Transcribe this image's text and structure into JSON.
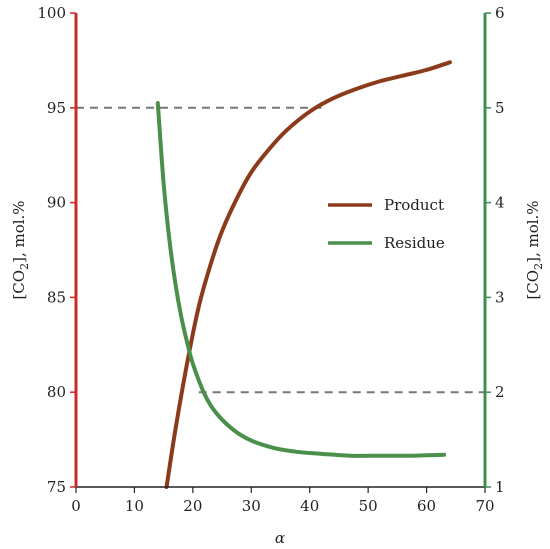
{
  "chart_data": {
    "type": "line",
    "title": "",
    "xlabel": "α",
    "ylabel_left": {
      "main": "[CO",
      "sub": "2",
      "rest": "], mol.%"
    },
    "ylabel_right": {
      "main": "[CO",
      "sub": "2",
      "rest": "], mol.%"
    },
    "xlim": [
      0,
      70
    ],
    "ylim_left": [
      75,
      100
    ],
    "ylim_right": [
      1,
      6
    ],
    "xticks": [
      "0",
      "10",
      "20",
      "30",
      "40",
      "50",
      "60",
      "70"
    ],
    "yticks_left": [
      "75",
      "80",
      "85",
      "90",
      "95",
      "100"
    ],
    "yticks_right": [
      "1",
      "2",
      "3",
      "4",
      "5",
      "6"
    ],
    "grid": false,
    "legend_position": "center-right",
    "colors": {
      "product": "#8b3a1a",
      "residue": "#4a8f4a",
      "left_axis": "#cc2a2a",
      "right_axis": "#3d8f4f",
      "reference": "#777777"
    },
    "reference_lines": [
      {
        "axis": "left",
        "y": 95,
        "x_from": 0,
        "x_to": 42
      },
      {
        "axis": "right",
        "y": 2,
        "x_from": 21,
        "x_to": 70
      }
    ],
    "series": [
      {
        "name": "Product",
        "axis": "left",
        "x": [
          15.5,
          17,
          19,
          21,
          23,
          25,
          27.5,
          30,
          33,
          36,
          40,
          44,
          48,
          52,
          56,
          60,
          64
        ],
        "y": [
          75,
          78,
          81.5,
          84.5,
          86.7,
          88.5,
          90.2,
          91.6,
          92.8,
          93.8,
          94.8,
          95.5,
          96.0,
          96.4,
          96.7,
          97.0,
          97.4
        ]
      },
      {
        "name": "Residue",
        "axis": "right",
        "x": [
          14,
          15,
          16,
          17,
          18,
          19,
          20,
          22,
          24,
          27,
          30,
          34,
          38,
          42,
          47,
          52,
          57,
          63
        ],
        "y": [
          5.05,
          4.2,
          3.6,
          3.15,
          2.8,
          2.53,
          2.3,
          1.98,
          1.78,
          1.6,
          1.49,
          1.41,
          1.37,
          1.35,
          1.33,
          1.33,
          1.33,
          1.34
        ]
      }
    ]
  }
}
